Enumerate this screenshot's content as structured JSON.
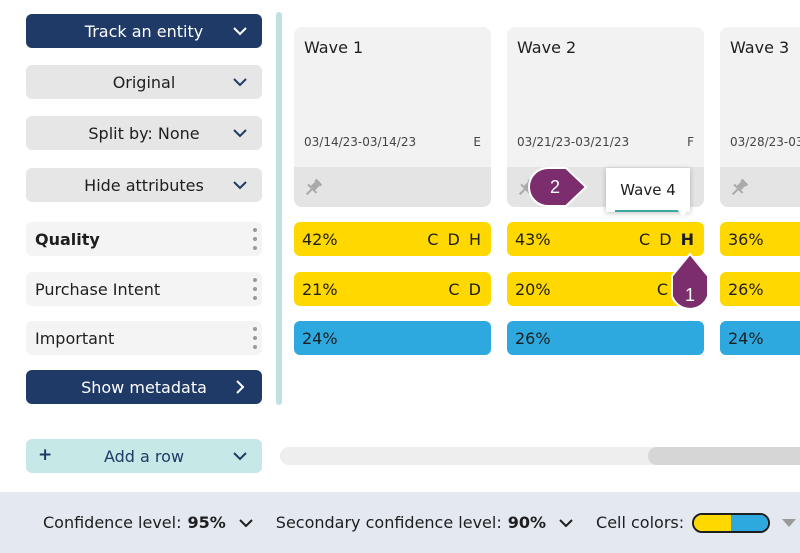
{
  "controls": {
    "track_entity": "Track an entity",
    "original": "Original",
    "split_by": "Split by: None",
    "hide_attributes": "Hide attributes",
    "show_metadata": "Show metadata",
    "add_row": "Add a row",
    "add_row_plus": "+"
  },
  "rows": [
    {
      "label": "Quality"
    },
    {
      "label": "Purchase Intent"
    },
    {
      "label": "Important"
    }
  ],
  "waves": [
    {
      "title": "Wave 1",
      "date": "03/14/23-03/14/23",
      "letter": "E"
    },
    {
      "title": "Wave 2",
      "date": "03/21/23-03/21/23",
      "letter": "F"
    },
    {
      "title": "Wave 3",
      "date": "03/28/23-03",
      "letter": ""
    }
  ],
  "cells": {
    "wave1": [
      {
        "pct": "42%",
        "letters": "C D H"
      },
      {
        "pct": "21%",
        "letters": "C D"
      },
      {
        "pct": "24%",
        "letters": ""
      }
    ],
    "wave2": [
      {
        "pct": "43%",
        "letters": "C D",
        "bold_letter": "H"
      },
      {
        "pct": "20%",
        "letters": "C"
      },
      {
        "pct": "26%",
        "letters": ""
      }
    ],
    "wave3": [
      {
        "pct": "36%"
      },
      {
        "pct": "26%"
      },
      {
        "pct": "24%"
      }
    ]
  },
  "tooltip": {
    "text": "Wave 4"
  },
  "markers": {
    "step1": "1",
    "step2": "2"
  },
  "bottom_bar": {
    "confidence_label": "Confidence level:",
    "confidence_value": "95%",
    "secondary_label": "Secondary confidence level:",
    "secondary_value": "90%",
    "cell_colors_label": "Cell colors:"
  },
  "colors": {
    "navy": "#1f3a66",
    "yellow": "#ffd800",
    "blue": "#2ea9e0",
    "teal": "#c6e8e6",
    "marker_purple": "#7b2d6e"
  }
}
